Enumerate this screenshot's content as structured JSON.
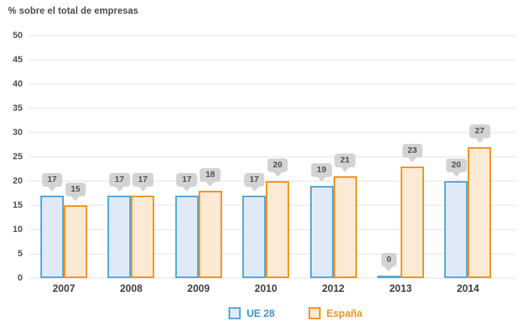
{
  "title": "% sobre el total de empresas",
  "colors": {
    "gridline": "#f0f0f0",
    "callout_bg": "#d3d3d3",
    "callout_text": "#4f4f4f",
    "axis_text": "#4d4d4d",
    "title_text": "#4a4a4a"
  },
  "chart_data": {
    "type": "bar",
    "title": "% sobre el total de empresas",
    "categories": [
      "2007",
      "2008",
      "2009",
      "2010",
      "2012",
      "2013",
      "2014"
    ],
    "series": [
      {
        "name": "UE 28",
        "values": [
          17,
          17,
          17,
          17,
          19,
          0,
          20
        ],
        "fill": "#dfeaf6",
        "border": "#56a7da",
        "label_color": "#3b96d2"
      },
      {
        "name": "España",
        "values": [
          15,
          17,
          18,
          20,
          21,
          23,
          27
        ],
        "fill": "#fcead4",
        "border": "#f2941f",
        "label_color": "#f2941f"
      }
    ],
    "y_ticks": [
      0,
      5,
      10,
      15,
      20,
      25,
      30,
      35,
      40,
      45,
      50
    ],
    "ylim": [
      0,
      50
    ],
    "xlabel": "",
    "ylabel": "",
    "grid": true,
    "data_labels": true,
    "legend_position": "bottom"
  }
}
